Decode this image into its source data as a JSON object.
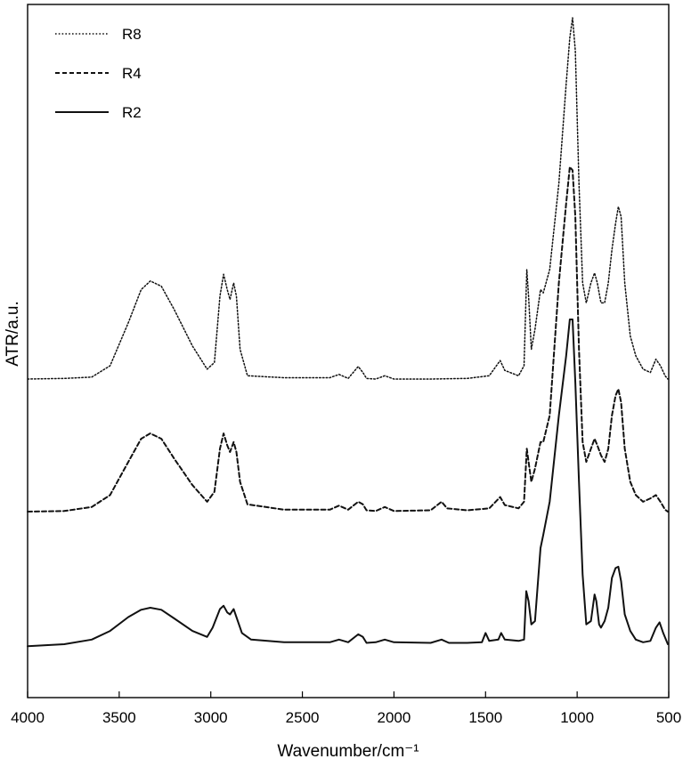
{
  "chart_data": {
    "type": "line",
    "xlabel": "Wavenumber/cm⁻¹",
    "ylabel": "ATR/a.u.",
    "xlim": [
      4000,
      500
    ],
    "x_reversed": true,
    "x_ticks": [
      4000,
      3500,
      3000,
      2500,
      2000,
      1500,
      1000,
      500
    ],
    "y_tick_labels": false,
    "grid": false,
    "legend_position": "top-left",
    "legend": [
      {
        "name": "R8",
        "style": "dotted"
      },
      {
        "name": "R4",
        "style": "dashed"
      },
      {
        "name": "R2",
        "style": "solid"
      }
    ],
    "ylim": [
      0,
      1.0
    ],
    "series": [
      {
        "name": "R8",
        "style": "dotted",
        "points": [
          [
            4000,
            0.455
          ],
          [
            3800,
            0.456
          ],
          [
            3650,
            0.458
          ],
          [
            3550,
            0.475
          ],
          [
            3450,
            0.54
          ],
          [
            3380,
            0.59
          ],
          [
            3330,
            0.603
          ],
          [
            3270,
            0.595
          ],
          [
            3200,
            0.56
          ],
          [
            3100,
            0.505
          ],
          [
            3020,
            0.47
          ],
          [
            2980,
            0.48
          ],
          [
            2950,
            0.58
          ],
          [
            2930,
            0.613
          ],
          [
            2910,
            0.59
          ],
          [
            2895,
            0.575
          ],
          [
            2875,
            0.6
          ],
          [
            2860,
            0.58
          ],
          [
            2840,
            0.5
          ],
          [
            2800,
            0.46
          ],
          [
            2600,
            0.457
          ],
          [
            2350,
            0.457
          ],
          [
            2300,
            0.462
          ],
          [
            2250,
            0.456
          ],
          [
            2195,
            0.474
          ],
          [
            2170,
            0.465
          ],
          [
            2150,
            0.456
          ],
          [
            2100,
            0.455
          ],
          [
            2050,
            0.46
          ],
          [
            2000,
            0.455
          ],
          [
            1800,
            0.455
          ],
          [
            1600,
            0.456
          ],
          [
            1480,
            0.46
          ],
          [
            1420,
            0.483
          ],
          [
            1395,
            0.468
          ],
          [
            1320,
            0.46
          ],
          [
            1290,
            0.475
          ],
          [
            1275,
            0.62
          ],
          [
            1265,
            0.58
          ],
          [
            1250,
            0.5
          ],
          [
            1230,
            0.53
          ],
          [
            1200,
            0.59
          ],
          [
            1185,
            0.585
          ],
          [
            1150,
            0.62
          ],
          [
            1100,
            0.75
          ],
          [
            1060,
            0.9
          ],
          [
            1040,
            0.97
          ],
          [
            1025,
            1.0
          ],
          [
            1010,
            0.95
          ],
          [
            990,
            0.75
          ],
          [
            970,
            0.6
          ],
          [
            950,
            0.57
          ],
          [
            925,
            0.6
          ],
          [
            905,
            0.615
          ],
          [
            890,
            0.6
          ],
          [
            870,
            0.57
          ],
          [
            850,
            0.57
          ],
          [
            830,
            0.6
          ],
          [
            810,
            0.65
          ],
          [
            790,
            0.69
          ],
          [
            775,
            0.715
          ],
          [
            760,
            0.7
          ],
          [
            740,
            0.6
          ],
          [
            710,
            0.52
          ],
          [
            680,
            0.49
          ],
          [
            640,
            0.47
          ],
          [
            600,
            0.465
          ],
          [
            570,
            0.485
          ],
          [
            545,
            0.475
          ],
          [
            520,
            0.46
          ],
          [
            505,
            0.455
          ]
        ]
      },
      {
        "name": "R4",
        "style": "dashed",
        "points": [
          [
            4000,
            0.255
          ],
          [
            3800,
            0.256
          ],
          [
            3650,
            0.262
          ],
          [
            3550,
            0.28
          ],
          [
            3450,
            0.33
          ],
          [
            3380,
            0.365
          ],
          [
            3330,
            0.373
          ],
          [
            3270,
            0.365
          ],
          [
            3200,
            0.335
          ],
          [
            3100,
            0.295
          ],
          [
            3020,
            0.27
          ],
          [
            2980,
            0.285
          ],
          [
            2950,
            0.35
          ],
          [
            2930,
            0.373
          ],
          [
            2910,
            0.355
          ],
          [
            2895,
            0.345
          ],
          [
            2875,
            0.36
          ],
          [
            2860,
            0.345
          ],
          [
            2840,
            0.3
          ],
          [
            2800,
            0.266
          ],
          [
            2600,
            0.258
          ],
          [
            2350,
            0.258
          ],
          [
            2300,
            0.264
          ],
          [
            2250,
            0.258
          ],
          [
            2195,
            0.27
          ],
          [
            2170,
            0.266
          ],
          [
            2150,
            0.257
          ],
          [
            2100,
            0.256
          ],
          [
            2050,
            0.262
          ],
          [
            2000,
            0.256
          ],
          [
            1800,
            0.257
          ],
          [
            1740,
            0.27
          ],
          [
            1710,
            0.26
          ],
          [
            1600,
            0.257
          ],
          [
            1480,
            0.26
          ],
          [
            1420,
            0.277
          ],
          [
            1395,
            0.265
          ],
          [
            1320,
            0.26
          ],
          [
            1290,
            0.27
          ],
          [
            1275,
            0.35
          ],
          [
            1265,
            0.33
          ],
          [
            1250,
            0.3
          ],
          [
            1230,
            0.32
          ],
          [
            1200,
            0.36
          ],
          [
            1185,
            0.36
          ],
          [
            1150,
            0.4
          ],
          [
            1100,
            0.6
          ],
          [
            1060,
            0.72
          ],
          [
            1040,
            0.775
          ],
          [
            1025,
            0.77
          ],
          [
            1010,
            0.7
          ],
          [
            990,
            0.5
          ],
          [
            970,
            0.36
          ],
          [
            950,
            0.33
          ],
          [
            925,
            0.35
          ],
          [
            905,
            0.365
          ],
          [
            890,
            0.355
          ],
          [
            870,
            0.34
          ],
          [
            850,
            0.33
          ],
          [
            830,
            0.35
          ],
          [
            810,
            0.4
          ],
          [
            790,
            0.43
          ],
          [
            775,
            0.44
          ],
          [
            760,
            0.42
          ],
          [
            740,
            0.35
          ],
          [
            710,
            0.3
          ],
          [
            680,
            0.28
          ],
          [
            640,
            0.27
          ],
          [
            600,
            0.275
          ],
          [
            570,
            0.28
          ],
          [
            545,
            0.27
          ],
          [
            520,
            0.258
          ],
          [
            505,
            0.255
          ]
        ]
      },
      {
        "name": "R2",
        "style": "solid",
        "points": [
          [
            4000,
            0.052
          ],
          [
            3800,
            0.055
          ],
          [
            3650,
            0.062
          ],
          [
            3550,
            0.075
          ],
          [
            3450,
            0.096
          ],
          [
            3380,
            0.107
          ],
          [
            3330,
            0.11
          ],
          [
            3270,
            0.107
          ],
          [
            3200,
            0.094
          ],
          [
            3100,
            0.075
          ],
          [
            3020,
            0.066
          ],
          [
            2990,
            0.08
          ],
          [
            2950,
            0.108
          ],
          [
            2930,
            0.113
          ],
          [
            2910,
            0.103
          ],
          [
            2895,
            0.1
          ],
          [
            2875,
            0.108
          ],
          [
            2860,
            0.096
          ],
          [
            2830,
            0.072
          ],
          [
            2780,
            0.062
          ],
          [
            2600,
            0.058
          ],
          [
            2350,
            0.058
          ],
          [
            2300,
            0.062
          ],
          [
            2250,
            0.058
          ],
          [
            2195,
            0.07
          ],
          [
            2170,
            0.066
          ],
          [
            2150,
            0.057
          ],
          [
            2100,
            0.058
          ],
          [
            2050,
            0.062
          ],
          [
            2000,
            0.058
          ],
          [
            1800,
            0.057
          ],
          [
            1740,
            0.062
          ],
          [
            1700,
            0.057
          ],
          [
            1600,
            0.057
          ],
          [
            1520,
            0.058
          ],
          [
            1500,
            0.072
          ],
          [
            1480,
            0.06
          ],
          [
            1430,
            0.062
          ],
          [
            1415,
            0.072
          ],
          [
            1395,
            0.062
          ],
          [
            1320,
            0.06
          ],
          [
            1290,
            0.062
          ],
          [
            1278,
            0.135
          ],
          [
            1265,
            0.12
          ],
          [
            1250,
            0.085
          ],
          [
            1230,
            0.09
          ],
          [
            1200,
            0.2
          ],
          [
            1185,
            0.22
          ],
          [
            1150,
            0.27
          ],
          [
            1100,
            0.4
          ],
          [
            1060,
            0.49
          ],
          [
            1040,
            0.545
          ],
          [
            1025,
            0.545
          ],
          [
            1010,
            0.45
          ],
          [
            990,
            0.3
          ],
          [
            970,
            0.16
          ],
          [
            950,
            0.085
          ],
          [
            925,
            0.09
          ],
          [
            905,
            0.13
          ],
          [
            895,
            0.12
          ],
          [
            880,
            0.085
          ],
          [
            870,
            0.08
          ],
          [
            850,
            0.09
          ],
          [
            830,
            0.11
          ],
          [
            810,
            0.155
          ],
          [
            790,
            0.17
          ],
          [
            775,
            0.172
          ],
          [
            760,
            0.15
          ],
          [
            740,
            0.1
          ],
          [
            710,
            0.075
          ],
          [
            680,
            0.062
          ],
          [
            640,
            0.058
          ],
          [
            600,
            0.06
          ],
          [
            570,
            0.08
          ],
          [
            550,
            0.088
          ],
          [
            530,
            0.072
          ],
          [
            505,
            0.055
          ]
        ]
      }
    ]
  }
}
